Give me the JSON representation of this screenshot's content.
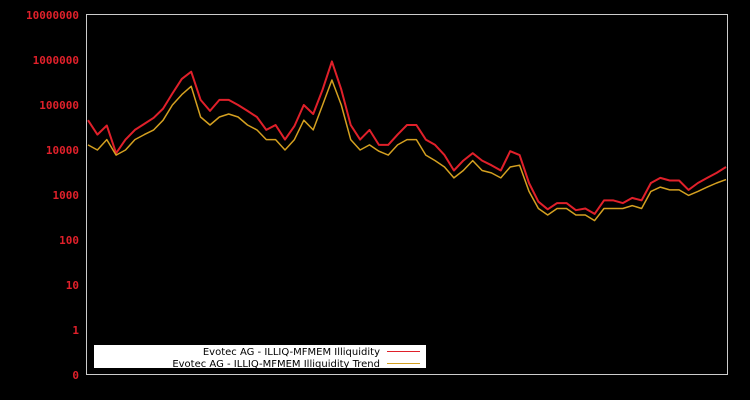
{
  "chart_data": {
    "type": "line",
    "title": "",
    "xlabel": "",
    "ylabel": "",
    "yscale": "log",
    "y_tick_labels": [
      "10000000",
      "1000000",
      "100000",
      "10000",
      "1000",
      "100",
      "10",
      "1",
      "0"
    ],
    "x_tick_labels": [],
    "ylim": [
      0.1,
      10000000
    ],
    "grid": false,
    "legend_position": "lower left",
    "colors": {
      "background": "#000000",
      "frame": "#cccccc",
      "tick_label": "#e0202a",
      "illiquidity": "#e0202a",
      "trend": "#d4a020",
      "legend_bg": "#ffffff"
    },
    "x": [
      0,
      1,
      2,
      3,
      4,
      5,
      6,
      7,
      8,
      9,
      10,
      11,
      12,
      13,
      14,
      15,
      16,
      17,
      18,
      19,
      20,
      21,
      22,
      23,
      24,
      25,
      26,
      27,
      28,
      29,
      30,
      31,
      32,
      33,
      34,
      35,
      36,
      37,
      38,
      39,
      40,
      41,
      42,
      43,
      44,
      45,
      46,
      47,
      48,
      49,
      50,
      51,
      52,
      53,
      54,
      55,
      56,
      57,
      58,
      59,
      60,
      61,
      62,
      63,
      64,
      65,
      66,
      67,
      68
    ],
    "series": [
      {
        "name": "Evotec AG - ILLIQ-MFMEM Illiquidity",
        "values": [
          46000,
          22000,
          35000,
          8500,
          17000,
          28000,
          38000,
          52000,
          83000,
          180000,
          380000,
          550000,
          130000,
          74000,
          130000,
          130000,
          100000,
          74000,
          54000,
          28000,
          36000,
          17000,
          34000,
          100000,
          63000,
          220000,
          930000,
          220000,
          36000,
          17000,
          28000,
          13000,
          13000,
          22000,
          36000,
          36000,
          17000,
          13000,
          7700,
          3500,
          5800,
          8500,
          5800,
          4600,
          3500,
          9400,
          7700,
          1850,
          710,
          480,
          660,
          660,
          460,
          500,
          380,
          760,
          760,
          660,
          860,
          760,
          1850,
          2400,
          2100,
          2100,
          1300,
          1850,
          2400,
          3100,
          4200
        ]
      },
      {
        "name": "Evotec AG - ILLIQ-MFMEM Illiquidity Trend",
        "values": [
          13000,
          10000,
          17000,
          7700,
          10000,
          17000,
          22000,
          28000,
          46000,
          100000,
          170000,
          260000,
          54000,
          36000,
          54000,
          63000,
          54000,
          36000,
          28000,
          17000,
          17000,
          10000,
          17000,
          46000,
          28000,
          100000,
          360000,
          100000,
          17000,
          10000,
          13000,
          9400,
          7700,
          13000,
          17000,
          17000,
          7700,
          5800,
          4200,
          2400,
          3500,
          5800,
          3500,
          3100,
          2400,
          4200,
          4600,
          1200,
          500,
          360,
          500,
          500,
          360,
          360,
          270,
          500,
          500,
          500,
          580,
          500,
          1200,
          1500,
          1300,
          1300,
          980,
          1200,
          1500,
          1850,
          2200
        ]
      }
    ]
  },
  "legend": {
    "items": [
      {
        "label": "Evotec AG - ILLIQ-MFMEM Illiquidity",
        "color": "#e0202a"
      },
      {
        "label": "Evotec AG - ILLIQ-MFMEM Illiquidity Trend",
        "color": "#d4a020"
      }
    ]
  }
}
